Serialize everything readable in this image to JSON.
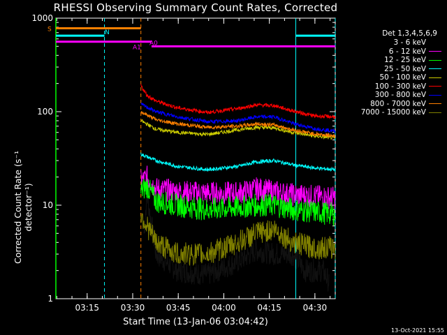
{
  "chart_data": {
    "type": "line",
    "title": "RHESSI Observing Summary Count Rates, Corrected",
    "xlabel": "Start Time (13-Jan-06 03:04:42)",
    "ylabel": "Corrected Count Rate (s⁻¹ detector⁻¹)",
    "ylog": true,
    "ylim": [
      1,
      1000
    ],
    "xlim_minutes": [
      0,
      92
    ],
    "x_ticks": [
      "03:15",
      "03:30",
      "03:45",
      "04:00",
      "04:15",
      "04:30"
    ],
    "y_ticks": [
      "1",
      "10",
      "100",
      "1000"
    ],
    "legend_title": "Det 1,3,4,5,6,9",
    "legend_position": "right",
    "series": [
      {
        "name": "3 - 6 keV",
        "color": "#000000",
        "points": [
          [
            29,
            5
          ],
          [
            30,
            13
          ],
          [
            33,
            3
          ],
          [
            40,
            2
          ],
          [
            50,
            1.8
          ],
          [
            60,
            2.5
          ],
          [
            66,
            3.3
          ],
          [
            72,
            3
          ],
          [
            78,
            3
          ],
          [
            82,
            2
          ],
          [
            88,
            2
          ],
          [
            90,
            1.5
          ]
        ]
      },
      {
        "name": "6 - 12 keV",
        "color": "#ff00ff",
        "points": [
          [
            28,
            18
          ],
          [
            30,
            20
          ],
          [
            33,
            15
          ],
          [
            40,
            14
          ],
          [
            50,
            13.5
          ],
          [
            60,
            13.5
          ],
          [
            66,
            15
          ],
          [
            72,
            14
          ],
          [
            78,
            13
          ],
          [
            85,
            12.5
          ],
          [
            92,
            12
          ]
        ]
      },
      {
        "name": "12 - 25 keV",
        "color": "#00ff00",
        "points": [
          [
            28,
            14
          ],
          [
            30,
            16
          ],
          [
            33,
            11
          ],
          [
            40,
            10
          ],
          [
            50,
            9
          ],
          [
            60,
            9.5
          ],
          [
            66,
            10
          ],
          [
            72,
            10
          ],
          [
            78,
            9
          ],
          [
            85,
            8.5
          ],
          [
            92,
            8
          ]
        ]
      },
      {
        "name": "25 - 50 keV",
        "color": "#00ffff",
        "points": [
          [
            28,
            35
          ],
          [
            33,
            30
          ],
          [
            40,
            26
          ],
          [
            50,
            24
          ],
          [
            60,
            26
          ],
          [
            66,
            29
          ],
          [
            72,
            30
          ],
          [
            78,
            27
          ],
          [
            85,
            25
          ],
          [
            92,
            24
          ]
        ]
      },
      {
        "name": "50 - 100 keV",
        "color": "#cccc00",
        "points": [
          [
            28,
            80
          ],
          [
            33,
            65
          ],
          [
            40,
            60
          ],
          [
            50,
            57
          ],
          [
            60,
            64
          ],
          [
            66,
            68
          ],
          [
            72,
            67
          ],
          [
            78,
            60
          ],
          [
            85,
            55
          ],
          [
            92,
            52
          ]
        ]
      },
      {
        "name": "100 - 300 keV",
        "color": "#ff0000",
        "points": [
          [
            28,
            190
          ],
          [
            30,
            150
          ],
          [
            33,
            130
          ],
          [
            40,
            110
          ],
          [
            50,
            98
          ],
          [
            60,
            108
          ],
          [
            66,
            118
          ],
          [
            72,
            116
          ],
          [
            78,
            102
          ],
          [
            85,
            90
          ],
          [
            92,
            88
          ]
        ]
      },
      {
        "name": "300 - 800 keV",
        "color": "#0000ff",
        "points": [
          [
            28,
            120
          ],
          [
            33,
            100
          ],
          [
            40,
            88
          ],
          [
            50,
            78
          ],
          [
            60,
            80
          ],
          [
            66,
            88
          ],
          [
            72,
            88
          ],
          [
            78,
            75
          ],
          [
            85,
            66
          ],
          [
            92,
            62
          ]
        ]
      },
      {
        "name": "800 - 7000 keV",
        "color": "#ff8000",
        "points": [
          [
            28,
            100
          ],
          [
            33,
            82
          ],
          [
            40,
            74
          ],
          [
            50,
            68
          ],
          [
            60,
            70
          ],
          [
            66,
            74
          ],
          [
            72,
            72
          ],
          [
            78,
            64
          ],
          [
            85,
            58
          ],
          [
            92,
            55
          ]
        ]
      },
      {
        "name": "7000 - 15000 keV",
        "color": "#808000",
        "points": [
          [
            28,
            8
          ],
          [
            30,
            6
          ],
          [
            33,
            4
          ],
          [
            40,
            3
          ],
          [
            50,
            3
          ],
          [
            60,
            4
          ],
          [
            66,
            5
          ],
          [
            72,
            5.5
          ],
          [
            78,
            4
          ],
          [
            85,
            3.5
          ],
          [
            92,
            3.5
          ]
        ]
      }
    ],
    "flag_bars": [
      {
        "label": "S",
        "color": "#ff8000",
        "segments": [
          [
            0,
            28
          ]
        ],
        "level": 780
      },
      {
        "label": "N",
        "color": "#00ffff",
        "segments": [
          [
            0,
            16
          ],
          [
            79,
            92
          ]
        ],
        "level": 650
      },
      {
        "label": "A1",
        "color": "#ff00ff",
        "segments": [
          [
            0,
            31.5
          ]
        ],
        "level": 560
      },
      {
        "label": "A0",
        "color": "#ff00ff",
        "segments": [
          [
            31.5,
            92
          ]
        ],
        "level": 500
      }
    ],
    "vlines": [
      {
        "x": 16,
        "color": "#00ffff"
      },
      {
        "x": 28,
        "color": "#ff8000"
      },
      {
        "x": 79,
        "color": "#00ffff"
      },
      {
        "x": 92,
        "color": "#00ffff"
      }
    ]
  },
  "footer": {
    "timestamp": "13-Oct-2021 15:55"
  }
}
